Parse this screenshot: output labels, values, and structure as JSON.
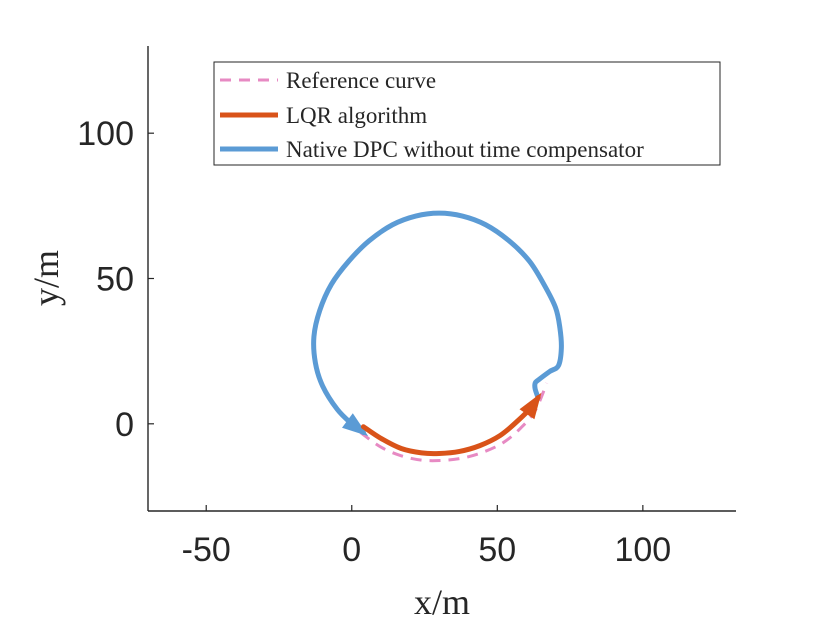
{
  "chart_data": {
    "type": "line",
    "xlabel": "x/m",
    "ylabel": "y/m",
    "xlim": [
      -70,
      132
    ],
    "ylim": [
      -30,
      130
    ],
    "xticks": [
      -50,
      0,
      50,
      100
    ],
    "yticks": [
      0,
      50,
      100
    ],
    "grid": false,
    "legend_position": "top",
    "colors": {
      "reference": "#E78AC3",
      "lqr": "#D95319",
      "dpc": "#5B9BD5",
      "axis": "#262626"
    },
    "series": [
      {
        "name": "Reference curve",
        "style": "dashed",
        "x": [
          3,
          10,
          17,
          24,
          31,
          38,
          45,
          52,
          58,
          63,
          67
        ],
        "y": [
          -3,
          -8,
          -11,
          -12.5,
          -12.6,
          -11.8,
          -9.8,
          -6.5,
          -1.5,
          4.5,
          14
        ]
      },
      {
        "name": "LQR algorithm",
        "style": "solid",
        "arrow_end": true,
        "x": [
          4,
          10,
          17,
          24,
          30,
          37,
          44,
          51,
          57,
          62,
          64
        ],
        "y": [
          -1,
          -5,
          -8.5,
          -10,
          -10.2,
          -9.5,
          -7.5,
          -4,
          1,
          6,
          9
        ]
      },
      {
        "name": "Native DPC without time compensator",
        "style": "solid",
        "arrow_end": true,
        "x": [
          64,
          63,
          63,
          64,
          68,
          71,
          72,
          71.5,
          70,
          66,
          61,
          54,
          46,
          38,
          30,
          22,
          14,
          6,
          -1,
          -7,
          -11,
          -13,
          -12.5,
          -10,
          -5,
          0,
          4
        ],
        "y": [
          9,
          12,
          14,
          15,
          18,
          20,
          26,
          33,
          40,
          48,
          56,
          63,
          68.5,
          71.5,
          72.5,
          71.5,
          68.5,
          63,
          56,
          48,
          39,
          30,
          21,
          13,
          5,
          0,
          -3
        ]
      }
    ]
  }
}
